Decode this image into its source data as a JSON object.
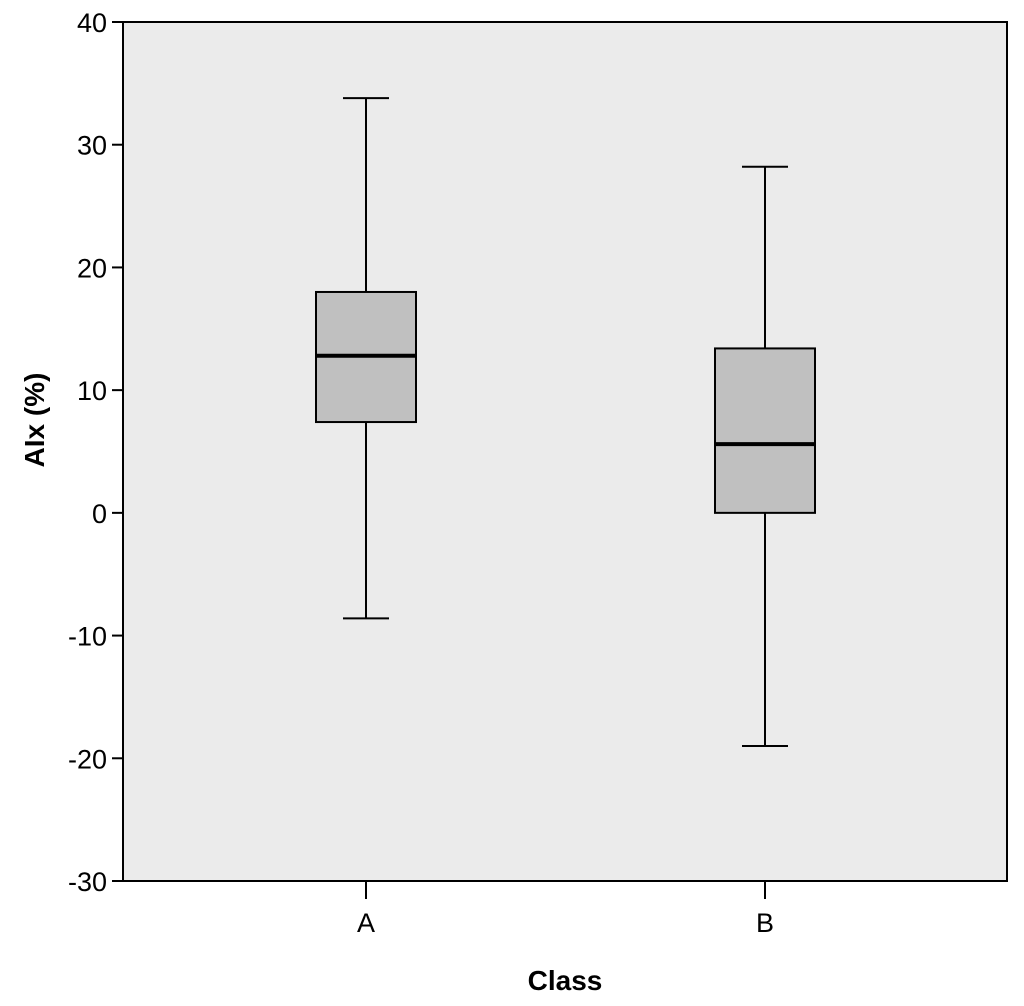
{
  "chart_data": {
    "type": "box",
    "title": "",
    "xlabel": "Class",
    "ylabel": "AIx (%)",
    "ylim": [
      -30,
      40
    ],
    "yticks": [
      40,
      30,
      20,
      10,
      0,
      -10,
      -20,
      -30
    ],
    "ytick_labels": [
      "40",
      "30",
      "20",
      "10",
      "0",
      "-10",
      "-20",
      "-30"
    ],
    "categories": [
      "A",
      "B"
    ],
    "boxes": [
      {
        "category": "A",
        "whisker_low": -8.6,
        "q1": 7.4,
        "median": 12.8,
        "q3": 18.0,
        "whisker_high": 33.8
      },
      {
        "category": "B",
        "whisker_low": -19.0,
        "q1": 0.0,
        "median": 5.6,
        "q3": 13.4,
        "whisker_high": 28.2
      }
    ],
    "grid": false,
    "legend": "none"
  },
  "colors": {
    "plot_background": "#ebebeb",
    "box_fill": "#c0c0c0",
    "stroke": "#000000"
  }
}
